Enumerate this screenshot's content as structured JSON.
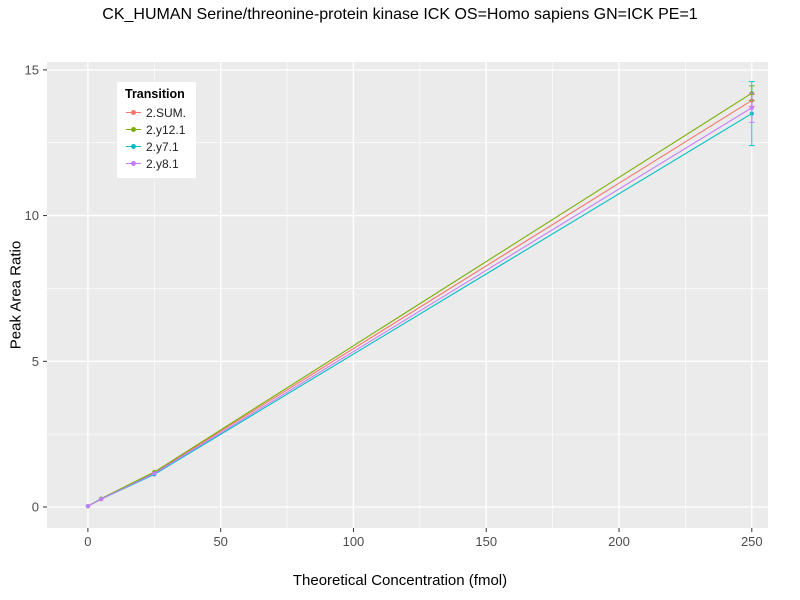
{
  "chart_data": {
    "type": "line",
    "title": "CK_HUMAN Serine/threonine-protein kinase ICK OS=Homo sapiens GN=ICK PE=1",
    "xlabel": "Theoretical Concentration (fmol)",
    "ylabel": "Peak Area Ratio",
    "legend_title": "Transition",
    "legend_position": "top-left-inside",
    "grid": "on",
    "panel_bg": "#EBEBEB",
    "grid_color": "#FFFFFF",
    "tick_label_color": "#4D4D4D",
    "x": [
      0,
      5,
      25,
      250
    ],
    "xticks": [
      0,
      50,
      100,
      150,
      200,
      250
    ],
    "yticks": [
      0,
      5,
      10,
      15
    ],
    "xlim": [
      -15.4,
      256.1
    ],
    "ylim": [
      -0.72,
      15.27
    ],
    "series": [
      {
        "name": "2.SUM.",
        "color": "#F8766D",
        "values": [
          0.03,
          0.28,
          1.18,
          13.95
        ],
        "yerr_last": 0.2
      },
      {
        "name": "2.y12.1",
        "color": "#7CAE00",
        "values": [
          0.03,
          0.29,
          1.2,
          14.2
        ],
        "yerr_last": 0.25
      },
      {
        "name": "2.y7.1",
        "color": "#00BFC4",
        "values": [
          0.03,
          0.27,
          1.12,
          13.5
        ],
        "yerr_last": 1.1
      },
      {
        "name": "2.y8.1",
        "color": "#C77CFF",
        "values": [
          0.03,
          0.27,
          1.15,
          13.7
        ],
        "yerr_last": 0.5
      }
    ]
  }
}
